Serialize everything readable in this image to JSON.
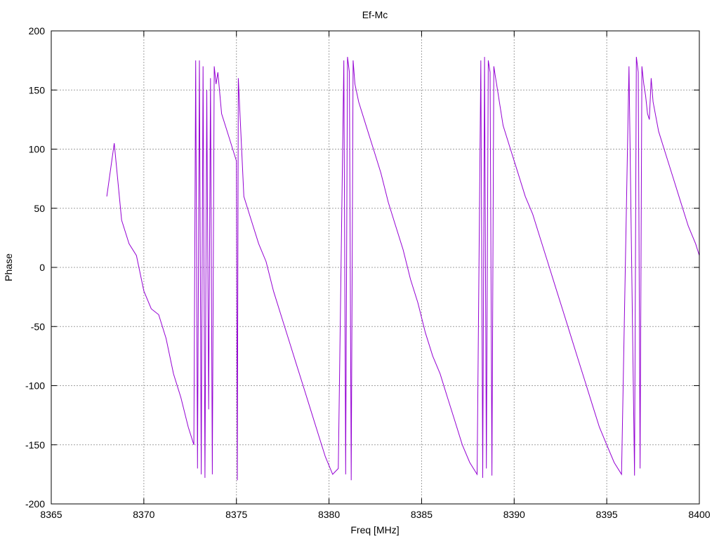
{
  "chart_data": {
    "type": "line",
    "title": "Ef-Mc",
    "xlabel": "Freq [MHz]",
    "ylabel": "Phase",
    "xlim": [
      8365,
      8400
    ],
    "ylim": [
      -200,
      200
    ],
    "xticks": [
      8365,
      8370,
      8375,
      8380,
      8385,
      8390,
      8395,
      8400
    ],
    "yticks": [
      -200,
      -150,
      -100,
      -50,
      0,
      50,
      100,
      150,
      200
    ],
    "grid": true,
    "line_color": "#9400d3",
    "series": [
      {
        "x": [
          8368,
          8368.4,
          8368.8,
          8369.2,
          8369.6,
          8370,
          8370.4,
          8370.8,
          8371.2,
          8371.6,
          8372,
          8372.4,
          8372.7,
          8372.8,
          8372.9,
          8373.0,
          8373.1,
          8373.2,
          8373.3,
          8373.4,
          8373.5,
          8373.6,
          8373.7,
          8373.8,
          8373.9,
          8374.0,
          8374.2,
          8374.6,
          8375.0,
          8375.05,
          8375.1,
          8375.4,
          8375.8,
          8376.2,
          8376.6,
          8377,
          8377.4,
          8377.8,
          8378.2,
          8378.6,
          8379,
          8379.4,
          8379.8,
          8380.2,
          8380.5,
          8380.8,
          8380.9,
          8381.0,
          8381.1,
          8381.2,
          8381.3,
          8381.4,
          8381.6,
          8382,
          8382.4,
          8382.8,
          8383.2,
          8383.6,
          8384,
          8384.4,
          8384.8,
          8385.2,
          8385.6,
          8386,
          8386.4,
          8386.8,
          8387.2,
          8387.6,
          8388,
          8388.2,
          8388.3,
          8388.4,
          8388.5,
          8388.6,
          8388.7,
          8388.8,
          8388.9,
          8389.0,
          8389.1,
          8389.2,
          8389.4,
          8389.8,
          8390.2,
          8390.6,
          8391,
          8391.4,
          8391.8,
          8392.2,
          8392.6,
          8393,
          8393.4,
          8393.8,
          8394.2,
          8394.6,
          8395,
          8395.4,
          8395.8,
          8396.2,
          8396.5,
          8396.6,
          8396.7,
          8396.8,
          8396.9,
          8397.0,
          8397.1,
          8397.2,
          8397.3,
          8397.4,
          8397.5,
          8397.8,
          8398.2,
          8398.6,
          8399,
          8399.4,
          8399.8,
          8400
        ],
        "y": [
          60,
          105,
          40,
          20,
          10,
          -20,
          -35,
          -40,
          -60,
          -90,
          -110,
          -135,
          -150,
          175,
          -170,
          175,
          -175,
          170,
          -178,
          150,
          -120,
          160,
          -175,
          170,
          155,
          165,
          130,
          110,
          90,
          -180,
          160,
          60,
          40,
          20,
          5,
          -20,
          -40,
          -60,
          -80,
          -100,
          -120,
          -140,
          -160,
          -175,
          -170,
          175,
          -175,
          178,
          165,
          -180,
          175,
          155,
          140,
          120,
          100,
          80,
          55,
          35,
          15,
          -10,
          -30,
          -55,
          -75,
          -90,
          -110,
          -130,
          -150,
          -165,
          -175,
          175,
          -178,
          178,
          -170,
          175,
          165,
          -176,
          170,
          160,
          150,
          140,
          120,
          100,
          80,
          60,
          45,
          25,
          5,
          -15,
          -35,
          -55,
          -75,
          -95,
          -115,
          -135,
          -150,
          -165,
          -175,
          170,
          -176,
          178,
          165,
          -170,
          170,
          155,
          145,
          130,
          125,
          160,
          140,
          115,
          95,
          75,
          55,
          35,
          20,
          10
        ]
      }
    ]
  }
}
